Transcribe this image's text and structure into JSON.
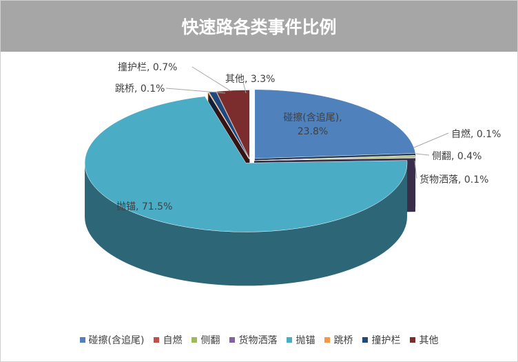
{
  "chart_data": {
    "type": "pie",
    "title": "快速路各类事件比例",
    "categories": [
      "碰擦(含追尾)",
      "自燃",
      "侧翻",
      "货物洒落",
      "抛锚",
      "跳桥",
      "撞护栏",
      "其他"
    ],
    "values": [
      23.8,
      0.1,
      0.4,
      0.1,
      71.5,
      0.1,
      0.7,
      3.3
    ],
    "value_labels": [
      "碰擦(含追尾), 23.8%",
      "自燃, 0.1%",
      "侧翻, 0.4%",
      "货物洒落, 0.1%",
      "抛锚, 71.5%",
      "跳桥, 0.1%",
      "撞护栏, 0.7%",
      "其他, 3.3%"
    ],
    "colors": [
      "#4f81bd",
      "#c0504d",
      "#9bbb59",
      "#8064a2",
      "#4bacc6",
      "#f79646",
      "#1f497d",
      "#7b2c2c"
    ],
    "legend": "bottom"
  }
}
